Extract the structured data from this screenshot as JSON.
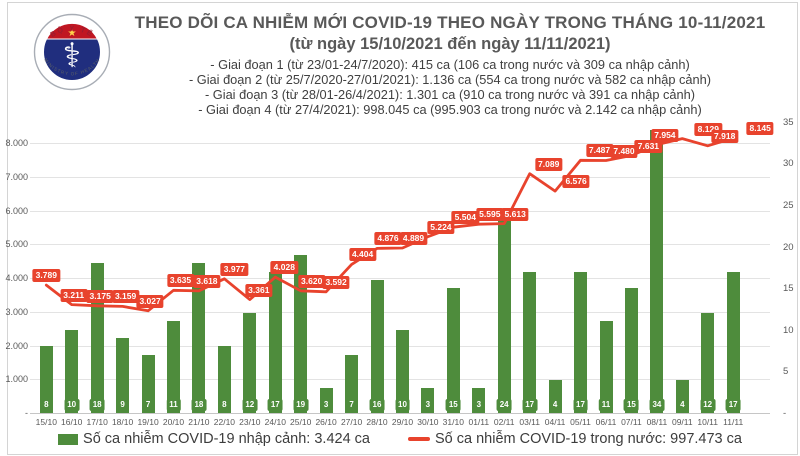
{
  "logo": {
    "top_text": "BỘ Y TẾ",
    "bottom_text": "MINISTRY OF HEALTH"
  },
  "header": {
    "title": "THEO DÕI CA NHIỄM MỚI COVID-19 THEO NGÀY TRONG THÁNG 10-11/2021",
    "subtitle": "(từ ngày 15/10/2021 đến ngày 11/11/2021)",
    "phases": [
      "- Giai đoạn 1 (từ 23/01-24/7/2020): 415 ca (106 ca trong nước và 309 ca nhập cảnh)",
      "- Giai đoạn 2 (từ 25/7/2020-27/01/2021): 1.136 ca (554 ca trong nước và 582 ca nhập cảnh)",
      "- Giai đoạn 3 (từ 28/01-26/4/2021): 1.301 ca (910 ca trong nước và 391 ca nhập cảnh)",
      "- Giai đoạn 4 (từ 27/4/2021): 998.045 ca (995.903 ca trong nước và 2.142 ca nhập cảnh)"
    ]
  },
  "chart_data": {
    "type": "combo",
    "grid": true,
    "legend_position": "bottom",
    "categories": [
      "15/10",
      "16/10",
      "17/10",
      "18/10",
      "19/10",
      "20/10",
      "21/10",
      "22/10",
      "23/10",
      "24/10",
      "25/10",
      "26/10",
      "27/10",
      "28/10",
      "29/10",
      "30/10",
      "31/10",
      "01/11",
      "02/11",
      "03/11",
      "04/11",
      "05/11",
      "06/11",
      "07/11",
      "08/11",
      "09/11",
      "10/11",
      "11/11"
    ],
    "series": [
      {
        "name": "Số ca nhiễm COVID-19 nhập cảnh",
        "type": "bar",
        "axis": "right",
        "color": "#4e8c3c",
        "values": [
          8,
          10,
          18,
          9,
          7,
          11,
          18,
          8,
          12,
          17,
          19,
          3,
          7,
          16,
          10,
          3,
          15,
          3,
          24,
          17,
          4,
          17,
          11,
          15,
          34,
          4,
          12,
          17
        ]
      },
      {
        "name": "Số ca nhiễm COVID-19 trong nước",
        "type": "line",
        "axis": "left",
        "color": "#e8432d",
        "values": [
          3789,
          3211,
          3175,
          3159,
          3027,
          3635,
          3618,
          3977,
          3361,
          4028,
          3620,
          3592,
          4404,
          4876,
          4889,
          5224,
          5504,
          5595,
          5613,
          7089,
          6576,
          7487,
          7480,
          7631,
          7954,
          8129,
          7918,
          8145
        ],
        "labels": [
          "3.789",
          "3.211",
          "3.175",
          "3.159",
          "3.027",
          "3.635",
          "3.618",
          "3.977",
          "3.361",
          "4.028",
          "3.620",
          "3.592",
          "4.404",
          "4.876",
          "4.889",
          "5.224",
          "5.504",
          "5.595",
          "5.613",
          "7.089",
          "6.576",
          "7.487",
          "7.480",
          "7.631",
          "7.954",
          "8.129",
          "7.918",
          "8.145"
        ]
      }
    ],
    "left_axis": {
      "min": 0,
      "max": 8000,
      "ticks": [
        "-",
        "1.000",
        "2.000",
        "3.000",
        "4.000",
        "5.000",
        "6.000",
        "7.000",
        "8.000"
      ]
    },
    "right_axis": {
      "min": 0,
      "max": 35,
      "ticks": [
        "-",
        "5",
        "10",
        "15",
        "20",
        "25",
        "30",
        "35"
      ]
    },
    "legend": [
      {
        "swatch": "bar",
        "color": "#4e8c3c",
        "label": "Số ca nhiễm COVID-19 nhập cảnh: 3.424 ca"
      },
      {
        "swatch": "line",
        "color": "#e8432d",
        "label": "Số ca nhiễm COVID-19 trong nước: 997.473 ca"
      }
    ]
  },
  "colors": {
    "bar_green": "#4e8c3c",
    "line_red": "#e8432d",
    "logo_navy": "#202e7e",
    "logo_red": "#c01622"
  }
}
